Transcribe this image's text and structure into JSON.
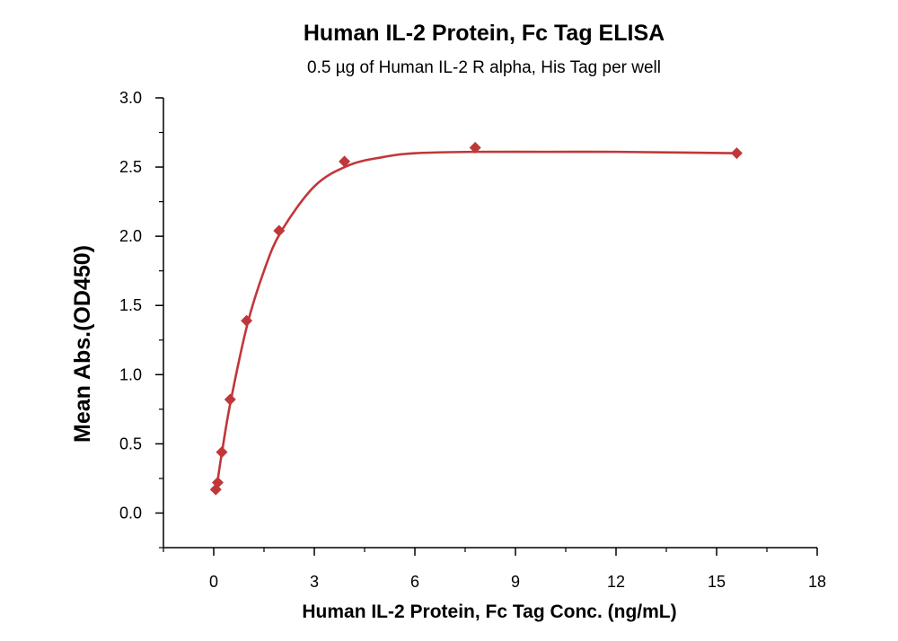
{
  "chart_data": {
    "type": "scatter",
    "title": "Human IL-2 Protein, Fc Tag ELISA",
    "subtitle": "0.5 µg of Human IL-2 R alpha, His Tag per well",
    "xlabel": "Human IL-2 Protein, Fc Tag Conc. (ng/mL)",
    "ylabel": "Mean Abs.(OD450)",
    "xlim": [
      -1.5,
      18
    ],
    "ylim": [
      -0.25,
      3.0
    ],
    "xticks": [
      0,
      3,
      6,
      9,
      12,
      15,
      18
    ],
    "yticks": [
      0.0,
      0.5,
      1.0,
      1.5,
      2.0,
      2.5,
      3.0
    ],
    "x_tick_labels": [
      "0",
      "3",
      "6",
      "9",
      "12",
      "15",
      "18"
    ],
    "y_tick_labels": [
      "0.0",
      "0.5",
      "1.0",
      "1.5",
      "2.0",
      "2.5",
      "3.0"
    ],
    "grid": false,
    "series": [
      {
        "marker": "diamond",
        "color": "#c0373a",
        "x": [
          0.06,
          0.12,
          0.24,
          0.49,
          0.98,
          1.95,
          3.9,
          7.8,
          15.6
        ],
        "y": [
          0.17,
          0.22,
          0.44,
          0.82,
          1.39,
          2.04,
          2.54,
          2.64,
          2.6
        ]
      }
    ],
    "fit_curve": {
      "color": "#c0373a",
      "x": [
        0.06,
        0.12,
        0.24,
        0.5,
        1.0,
        1.5,
        2.0,
        3.0,
        4.0,
        5.0,
        6.0,
        7.8,
        10.0,
        12.0,
        15.6
      ],
      "y": [
        0.15,
        0.24,
        0.43,
        0.8,
        1.36,
        1.75,
        2.03,
        2.36,
        2.51,
        2.57,
        2.6,
        2.61,
        2.61,
        2.61,
        2.6
      ]
    }
  }
}
